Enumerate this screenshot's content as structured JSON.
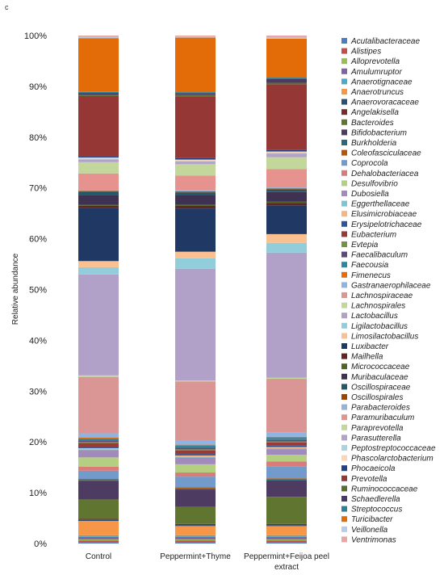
{
  "panel_letter": "c",
  "chart_data": {
    "type": "bar",
    "stacked": true,
    "title": "",
    "xlabel": "",
    "ylabel": "Relative abundance",
    "ylim": [
      0,
      100
    ],
    "yticks": [
      "0%",
      "10%",
      "20%",
      "30%",
      "40%",
      "50%",
      "60%",
      "70%",
      "80%",
      "90%",
      "100%"
    ],
    "categories": [
      "Control",
      "Peppermint+Thyme",
      "Peppermint+Feijoa peel\nextract"
    ],
    "legend_position": "right",
    "grid": false,
    "series": [
      {
        "name": "Acutalibacteraceae",
        "color": "#4A7EC2",
        "values": [
          0.3,
          0.3,
          0.3
        ]
      },
      {
        "name": "Alistipes",
        "color": "#C0504D",
        "values": [
          0.3,
          0.3,
          0.3
        ]
      },
      {
        "name": "Alloprevotella",
        "color": "#9BBB59",
        "values": [
          0.2,
          0.2,
          0.2
        ]
      },
      {
        "name": "Amulumruptor",
        "color": "#8064A2",
        "values": [
          0.5,
          0.5,
          0.5
        ]
      },
      {
        "name": "Anaerotignaceae",
        "color": "#4BACC6",
        "values": [
          0.3,
          0.3,
          0.3
        ]
      },
      {
        "name": "Anaerotruncus",
        "color": "#F79646",
        "values": [
          2.8,
          1.8,
          1.8
        ]
      },
      {
        "name": "Anaerovoracaceae",
        "color": "#2C4D75",
        "values": [
          0.2,
          0.2,
          0.2
        ]
      },
      {
        "name": "Angelakisella",
        "color": "#772C2A",
        "values": [
          0.2,
          0.2,
          0.2
        ]
      },
      {
        "name": "Bacteroides",
        "color": "#5F7530",
        "values": [
          3.8,
          3.3,
          5.3
        ]
      },
      {
        "name": "Bifidobacterium",
        "color": "#4D3B62",
        "values": [
          3.6,
          3.4,
          3.2
        ]
      },
      {
        "name": "Burkholderia",
        "color": "#276A7C",
        "values": [
          0.2,
          0.2,
          0.2
        ]
      },
      {
        "name": "Coleofasciculaceae",
        "color": "#B65708",
        "values": [
          0.2,
          0.2,
          0.2
        ]
      },
      {
        "name": "Coprocola",
        "color": "#729ACA",
        "values": [
          1.6,
          2.1,
          2.3
        ]
      },
      {
        "name": "Dehalobacteriacea",
        "color": "#D87C7A",
        "values": [
          0.8,
          0.8,
          1.0
        ]
      },
      {
        "name": "Desulfovibrio",
        "color": "#B4CE82",
        "values": [
          1.8,
          1.6,
          1.3
        ]
      },
      {
        "name": "Dubosiella",
        "color": "#A08BBA",
        "values": [
          1.4,
          1.3,
          1.1
        ]
      },
      {
        "name": "Eggerthellaceae",
        "color": "#7DC4D7",
        "values": [
          0.2,
          0.2,
          0.2
        ]
      },
      {
        "name": "Elusimicrobiaceae",
        "color": "#F9B67C",
        "values": [
          0.2,
          0.2,
          0.2
        ]
      },
      {
        "name": "Erysipelotrichaceae",
        "color": "#2F5597",
        "values": [
          0.3,
          0.3,
          0.3
        ]
      },
      {
        "name": "Eubacterium",
        "color": "#9A3A37",
        "values": [
          0.7,
          0.7,
          0.6
        ]
      },
      {
        "name": "Evtepia",
        "color": "#76923C",
        "values": [
          0.2,
          0.2,
          0.2
        ]
      },
      {
        "name": "Faecalibaculum",
        "color": "#60497A",
        "values": [
          0.3,
          0.3,
          0.3
        ]
      },
      {
        "name": "Faecousia",
        "color": "#31859C",
        "values": [
          0.4,
          0.4,
          0.4
        ]
      },
      {
        "name": "Fimenecus",
        "color": "#E46C0A",
        "values": [
          0.2,
          0.2,
          0.2
        ]
      },
      {
        "name": "Gastranaerophilaceae",
        "color": "#8EB4E3",
        "values": [
          0.8,
          0.8,
          0.8
        ]
      },
      {
        "name": "Lachnospiraceae",
        "color": "#DA9694",
        "values": [
          11.0,
          11.5,
          10.5
        ]
      },
      {
        "name": "Lachnospirales",
        "color": "#C4D79B",
        "values": [
          0.3,
          0.2,
          0.2
        ]
      },
      {
        "name": "Lactobacillus",
        "color": "#B1A0C7",
        "values": [
          19.7,
          21.7,
          24.4
        ]
      },
      {
        "name": "Ligilactobacillus",
        "color": "#92CDDC",
        "values": [
          1.4,
          2.0,
          1.9
        ]
      },
      {
        "name": "Limosilactobacillus",
        "color": "#FAC090",
        "values": [
          1.2,
          1.3,
          1.7
        ]
      },
      {
        "name": "Luxibacter",
        "color": "#1F3864",
        "values": [
          10.3,
          8.4,
          5.6
        ]
      },
      {
        "name": "Mailhella",
        "color": "#632523",
        "values": [
          0.5,
          0.5,
          0.5
        ]
      },
      {
        "name": "Micrococcaceae",
        "color": "#4F6228",
        "values": [
          0.2,
          0.2,
          0.2
        ]
      },
      {
        "name": "Muribaculaceae",
        "color": "#3F3151",
        "values": [
          1.9,
          1.9,
          1.9
        ]
      },
      {
        "name": "Oscillospiraceae",
        "color": "#215968",
        "values": [
          0.6,
          0.5,
          0.5
        ]
      },
      {
        "name": "Oscillospirales",
        "color": "#974806",
        "values": [
          0.2,
          0.2,
          0.2
        ]
      },
      {
        "name": "Parabacteroides",
        "color": "#95B3D7",
        "values": [
          0.2,
          0.2,
          0.2
        ]
      },
      {
        "name": "Paramuribaculum",
        "color": "#E6928F",
        "values": [
          3.2,
          2.9,
          3.6
        ]
      },
      {
        "name": "Paraprevotella",
        "color": "#C3D69B",
        "values": [
          2.2,
          2.2,
          2.3
        ]
      },
      {
        "name": "Parasutterella",
        "color": "#B3A2C7",
        "values": [
          0.5,
          0.5,
          0.7
        ]
      },
      {
        "name": "Peptostreptococcaceae",
        "color": "#A5D5E2",
        "values": [
          0.2,
          0.2,
          0.2
        ]
      },
      {
        "name": "Phascolarctobacterium",
        "color": "#FCD5B4",
        "values": [
          0.2,
          0.2,
          0.2
        ]
      },
      {
        "name": "Phocaeicola",
        "color": "#244185",
        "values": [
          0.3,
          0.3,
          0.3
        ]
      },
      {
        "name": "Prevotella",
        "color": "#953735",
        "values": [
          11.7,
          12.0,
          12.8
        ]
      },
      {
        "name": "Ruminococcaceae",
        "color": "#5A6E31",
        "values": [
          0.3,
          0.3,
          0.3
        ]
      },
      {
        "name": "Schaedlerella",
        "color": "#4A3A63",
        "values": [
          0.3,
          0.3,
          0.8
        ]
      },
      {
        "name": "Streptococcus",
        "color": "#2E8196",
        "values": [
          0.2,
          0.2,
          0.2
        ]
      },
      {
        "name": "Turicibacter",
        "color": "#E36C09",
        "values": [
          10.5,
          10.6,
          7.6
        ]
      },
      {
        "name": "Veillonella",
        "color": "#B8CCE4",
        "values": [
          0.2,
          0.2,
          0.2
        ]
      },
      {
        "name": "Ventrimonas",
        "color": "#E8A7A5",
        "values": [
          0.3,
          0.2,
          0.4
        ]
      }
    ]
  }
}
